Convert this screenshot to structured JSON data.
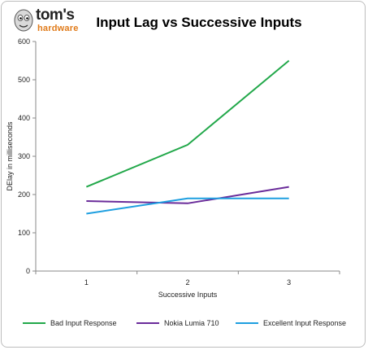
{
  "logo": {
    "brand": "tom's",
    "sub": "hardware",
    "icon": "mascot-icon"
  },
  "chart_data": {
    "type": "line",
    "title": "Input Lag vs Successive Inputs",
    "xlabel": "Successive Inputs",
    "ylabel": "DElay in milliseconds",
    "x": [
      1,
      2,
      3
    ],
    "ylim": [
      0,
      600
    ],
    "yticks": [
      0,
      100,
      200,
      300,
      400,
      500,
      600
    ],
    "grid": false,
    "legend": "bottom",
    "series": [
      {
        "name": "Bad Input Response",
        "values": [
          220,
          330,
          550
        ],
        "color": "#22a84a"
      },
      {
        "name": "Nokia Lumia 710",
        "values": [
          183,
          177,
          220
        ],
        "color": "#6a2c9a"
      },
      {
        "name": "Excellent Input Response",
        "values": [
          150,
          190,
          190
        ],
        "color": "#1e9fe0"
      }
    ]
  }
}
